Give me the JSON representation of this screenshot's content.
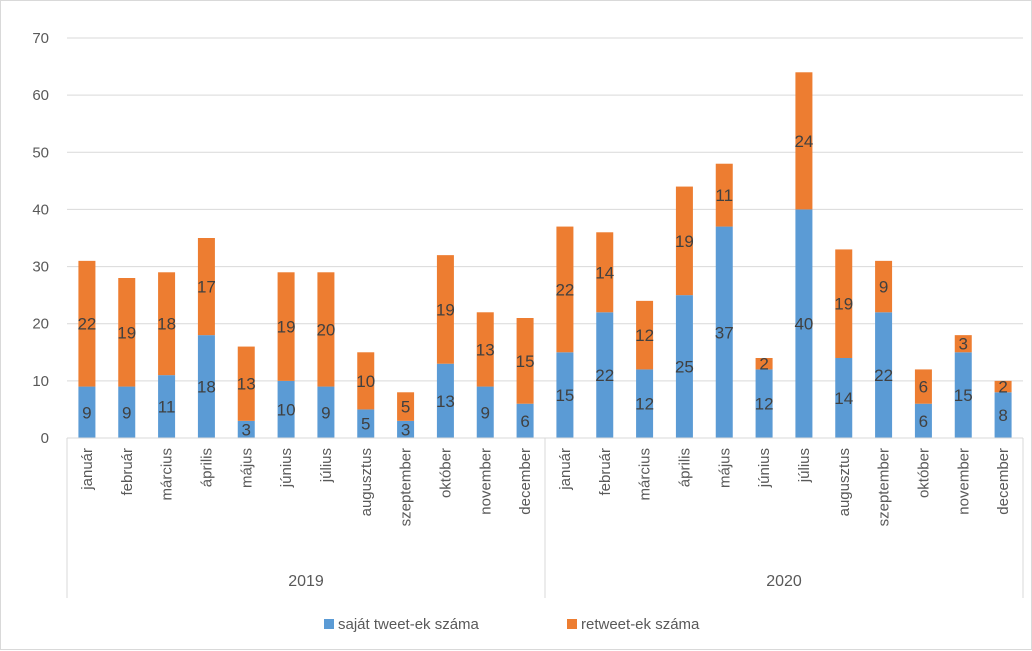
{
  "chart_data": {
    "type": "bar",
    "stacked": true,
    "title": "",
    "xlabel": "",
    "ylabel": "",
    "ylim": [
      0,
      70
    ],
    "yticks": [
      0,
      10,
      20,
      30,
      40,
      50,
      60,
      70
    ],
    "grid": true,
    "legend_position": "bottom",
    "groups": [
      {
        "label": "2019",
        "categories": [
          "január",
          "február",
          "március",
          "április",
          "május",
          "június",
          "július",
          "augusztus",
          "szeptember",
          "október",
          "november",
          "december"
        ]
      },
      {
        "label": "2020",
        "categories": [
          "január",
          "február",
          "március",
          "április",
          "május",
          "június",
          "július",
          "augusztus",
          "szeptember",
          "október",
          "november",
          "december"
        ]
      }
    ],
    "series": [
      {
        "name": "saját tweet-ek száma",
        "color": "#5b9bd5",
        "values": [
          9,
          9,
          11,
          18,
          3,
          10,
          9,
          5,
          3,
          13,
          9,
          6,
          15,
          22,
          12,
          25,
          37,
          12,
          40,
          14,
          22,
          6,
          15,
          8
        ]
      },
      {
        "name": "retweet-ek száma",
        "color": "#ed7d31",
        "values": [
          22,
          19,
          18,
          17,
          13,
          19,
          20,
          10,
          5,
          19,
          13,
          15,
          22,
          14,
          12,
          19,
          11,
          2,
          24,
          19,
          9,
          6,
          3,
          2
        ]
      }
    ]
  }
}
